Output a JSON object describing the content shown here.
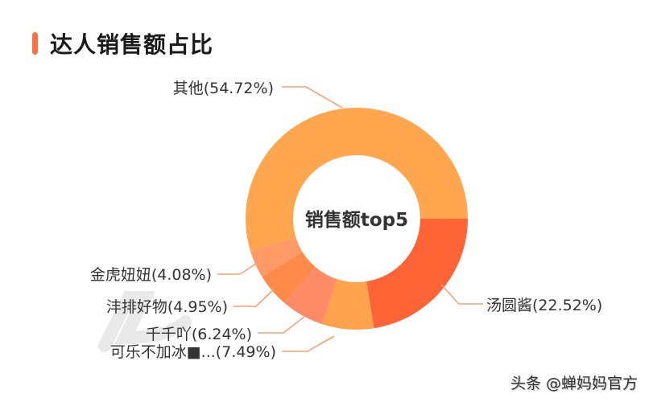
{
  "header": {
    "title": "达人销售额占比",
    "accent_color": "#ff7043"
  },
  "footer": {
    "text": "头条 @蝉妈妈官方"
  },
  "chart_data": {
    "type": "pie",
    "subtype": "donut",
    "title": "达人销售额占比",
    "center_label": "销售额top5",
    "start_angle": "3 o'clock, clockwise",
    "slices": [
      {
        "name": "汤圆酱",
        "value": 22.52,
        "label": "汤圆酱(22.52%)",
        "color": "#ff6436"
      },
      {
        "name": "可乐不加冰■...",
        "value": 7.49,
        "label": "可乐不加冰■...(7.49%)",
        "color": "#ffa24d"
      },
      {
        "name": "千千吖",
        "value": 6.24,
        "label": "千千吖(6.24%)",
        "color": "#ff8c66"
      },
      {
        "name": "沣排好物",
        "value": 4.95,
        "label": "沣排好物(4.95%)",
        "color": "#ff8a4a"
      },
      {
        "name": "金虎妞妞",
        "value": 4.08,
        "label": "金虎妞妞(4.08%)",
        "color": "#ff9a66"
      },
      {
        "name": "其他",
        "value": 54.72,
        "label": "其他(54.72%)",
        "color": "#ffa64f"
      }
    ],
    "legend": "none (leader-line labels)"
  }
}
